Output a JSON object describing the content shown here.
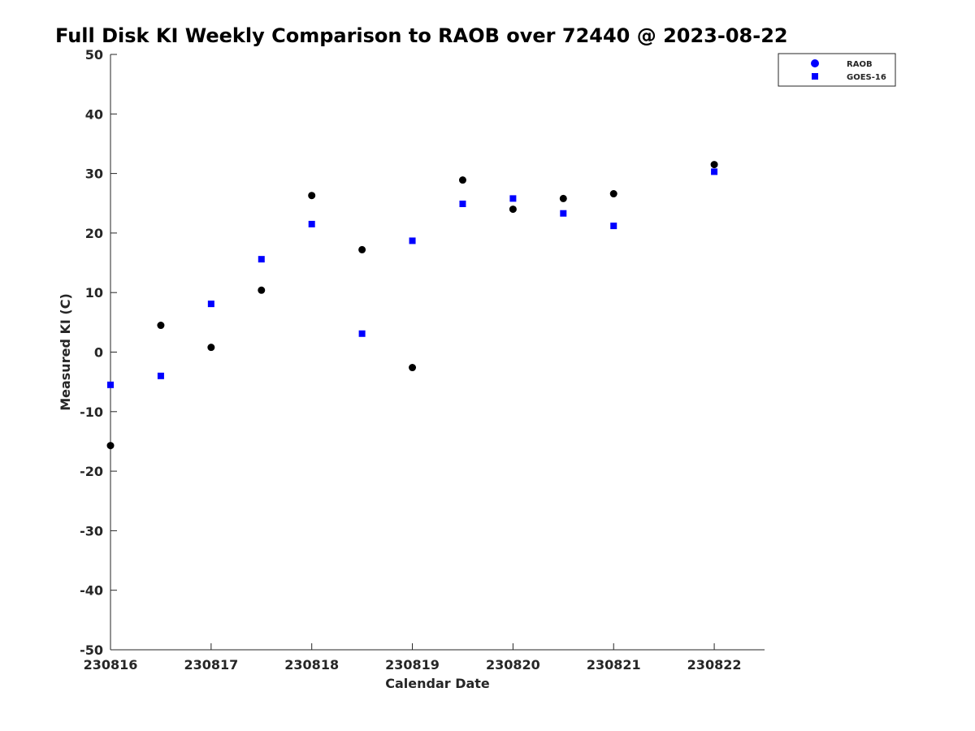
{
  "chart_data": {
    "type": "scatter",
    "title": "Full Disk KI Weekly Comparison to RAOB over 72440 @ 2023-08-22",
    "xlabel": "Calendar Date",
    "ylabel": "Measured KI (C)",
    "x_tick_labels": [
      "230816",
      "230817",
      "230818",
      "230819",
      "230820",
      "230821",
      "230822"
    ],
    "y_tick_labels": [
      "50",
      "40",
      "30",
      "20",
      "10",
      "0",
      "-10",
      "-20",
      "-30",
      "-40",
      "-50"
    ],
    "xlim": [
      "2023-08-16 00:00",
      "2023-08-22 12:00"
    ],
    "ylim": [
      -50,
      50
    ],
    "grid": false,
    "legend_position": "top-right",
    "series": [
      {
        "name": "RAOB",
        "marker": "circle",
        "color": "#000000",
        "legend_color": "#0000ff",
        "x": [
          "2023-08-16 00:00",
          "2023-08-16 12:00",
          "2023-08-17 00:00",
          "2023-08-17 12:00",
          "2023-08-18 00:00",
          "2023-08-18 12:00",
          "2023-08-19 00:00",
          "2023-08-19 12:00",
          "2023-08-20 00:00",
          "2023-08-20 12:00",
          "2023-08-21 00:00",
          "2023-08-22 00:00"
        ],
        "values": [
          -15.7,
          4.5,
          0.8,
          10.4,
          26.3,
          17.2,
          -2.6,
          28.9,
          24.0,
          25.8,
          26.6,
          31.5
        ]
      },
      {
        "name": "GOES-16",
        "marker": "square",
        "color": "#0000ff",
        "legend_color": "#0000ff",
        "x": [
          "2023-08-16 00:00",
          "2023-08-16 12:00",
          "2023-08-17 00:00",
          "2023-08-17 12:00",
          "2023-08-18 00:00",
          "2023-08-18 12:00",
          "2023-08-19 00:00",
          "2023-08-19 12:00",
          "2023-08-20 00:00",
          "2023-08-20 12:00",
          "2023-08-21 00:00",
          "2023-08-22 00:00"
        ],
        "values": [
          -5.5,
          -4.0,
          8.1,
          15.6,
          21.5,
          3.1,
          18.7,
          24.9,
          25.8,
          23.3,
          21.2,
          30.3
        ]
      }
    ]
  }
}
